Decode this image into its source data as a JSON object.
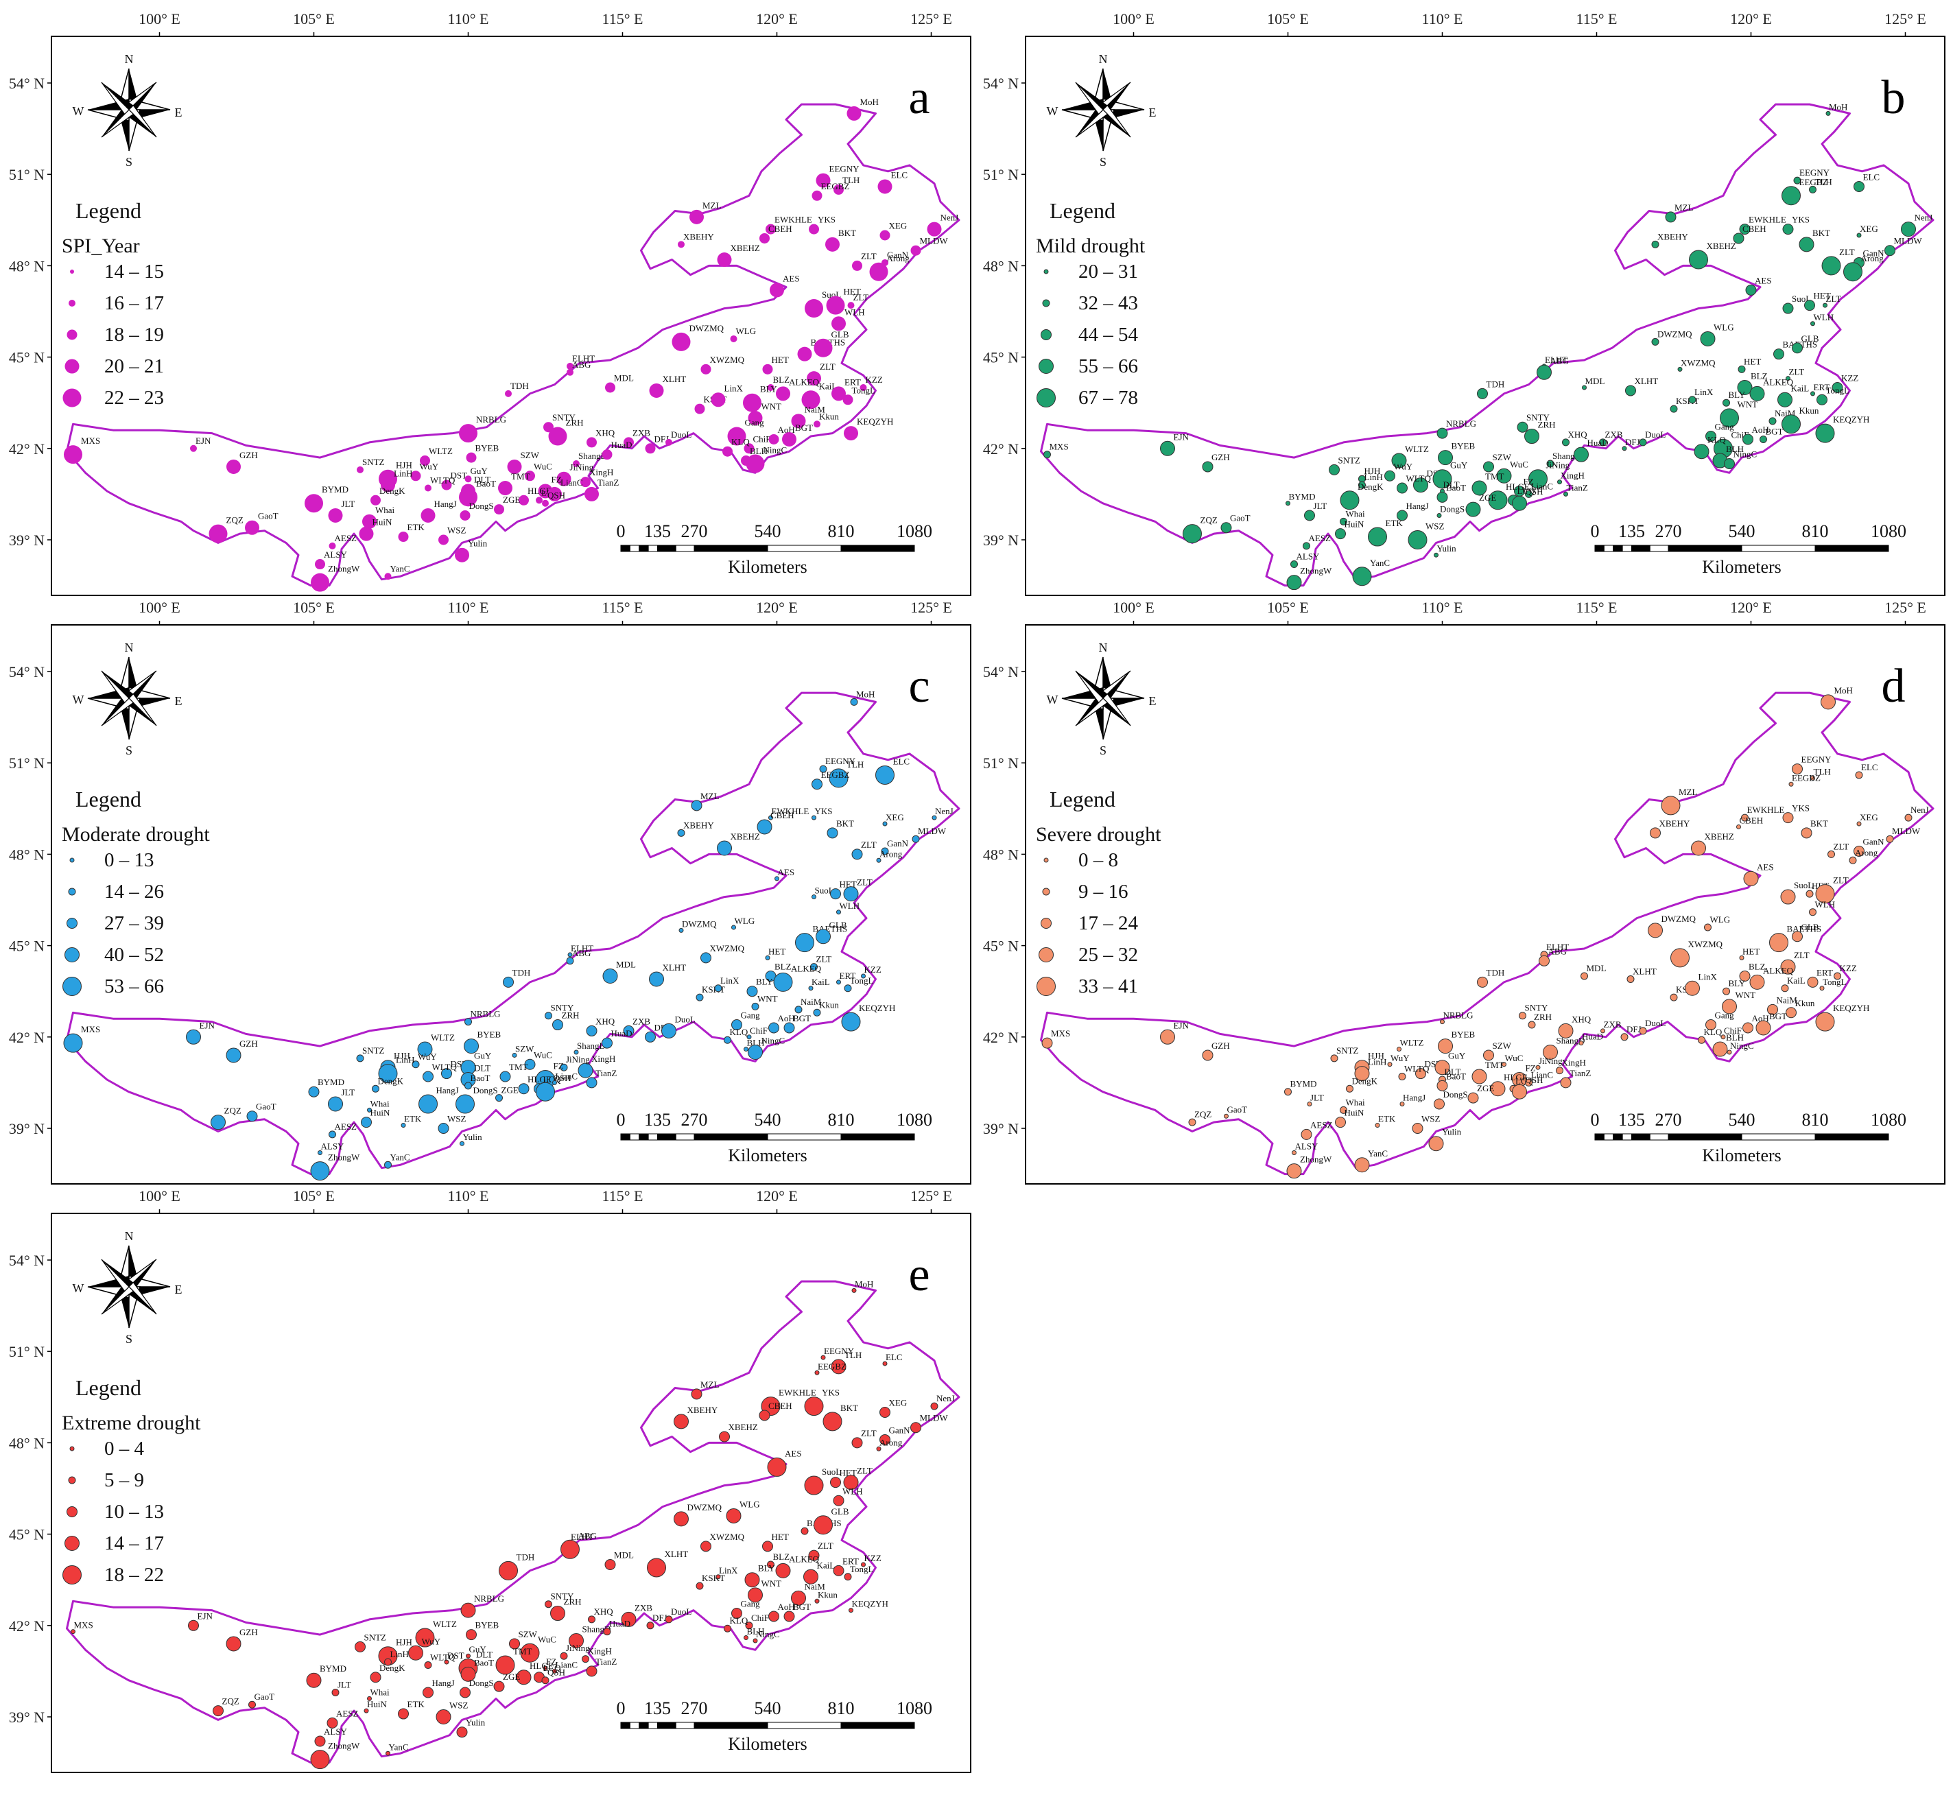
{
  "colors": {
    "border": "#b01ec8",
    "frame": "#000000",
    "panel_a": "#d21ec3",
    "panel_b": "#1fa06e",
    "panel_c": "#2aa0e0",
    "panel_d": "#f2906a",
    "panel_e": "#ee3b3b"
  },
  "compass": {
    "north": "N",
    "south": "S",
    "east": "E",
    "west": "W"
  },
  "longitude_ticks": [
    "100° E",
    "105° E",
    "110° E",
    "115° E",
    "120° E",
    "125° E"
  ],
  "latitude_ticks": [
    "54° N",
    "51° N",
    "48° N",
    "45° N",
    "42° N",
    "39° N"
  ],
  "scale_bar": {
    "ticks": [
      "0",
      "135",
      "270",
      "540",
      "810",
      "1080"
    ],
    "unit": "Kilometers"
  },
  "panels": [
    {
      "letter": "a",
      "legend_title": "Legend",
      "legend_subtitle": "SPI_Year",
      "classes": [
        "14 – 15",
        "16 – 17",
        "18 – 19",
        "20 – 21",
        "22 – 23"
      ]
    },
    {
      "letter": "b",
      "legend_title": "Legend",
      "legend_subtitle": "Mild drought",
      "classes": [
        "20 – 31",
        "32 – 43",
        "44 – 54",
        "55 – 66",
        "67 – 78"
      ]
    },
    {
      "letter": "c",
      "legend_title": "Legend",
      "legend_subtitle": "Moderate drought",
      "classes": [
        "0 – 13",
        "14 – 26",
        "27 – 39",
        "40 – 52",
        "53 – 66"
      ]
    },
    {
      "letter": "d",
      "legend_title": "Legend",
      "legend_subtitle": "Severe drought",
      "classes": [
        "0 – 8",
        "9 – 16",
        "17 – 24",
        "25 – 32",
        "33 – 41"
      ]
    },
    {
      "letter": "e",
      "legend_title": "Legend",
      "legend_subtitle": "Extreme drought",
      "classes": [
        "0 – 4",
        "5 – 9",
        "10 – 13",
        "14 – 17",
        "18 – 22"
      ]
    }
  ],
  "stations": [
    {
      "name": "MoH",
      "lon": 122.5,
      "lat": 53.0
    },
    {
      "name": "EEGNY",
      "lon": 121.5,
      "lat": 50.8
    },
    {
      "name": "TLH",
      "lon": 122.0,
      "lat": 50.5
    },
    {
      "name": "EEGBZ",
      "lon": 121.3,
      "lat": 50.3
    },
    {
      "name": "ELC",
      "lon": 123.5,
      "lat": 50.6
    },
    {
      "name": "MZL",
      "lon": 117.4,
      "lat": 49.6
    },
    {
      "name": "EWKHLE",
      "lon": 119.8,
      "lat": 49.2
    },
    {
      "name": "CBEH",
      "lon": 119.6,
      "lat": 48.9
    },
    {
      "name": "YKS",
      "lon": 121.2,
      "lat": 49.2
    },
    {
      "name": "XBEHY",
      "lon": 116.9,
      "lat": 48.7
    },
    {
      "name": "XBEHZ",
      "lon": 118.3,
      "lat": 48.2
    },
    {
      "name": "BKT",
      "lon": 121.8,
      "lat": 48.7
    },
    {
      "name": "XEG",
      "lon": 123.5,
      "lat": 49.0
    },
    {
      "name": "NenJ",
      "lon": 125.1,
      "lat": 49.2
    },
    {
      "name": "MLDW",
      "lon": 124.5,
      "lat": 48.5
    },
    {
      "name": "ZLT",
      "lon": 122.6,
      "lat": 48.0
    },
    {
      "name": "GanN",
      "lon": 123.5,
      "lat": 48.1
    },
    {
      "name": "Arong",
      "lon": 123.3,
      "lat": 47.8
    },
    {
      "name": "AES",
      "lon": 120.0,
      "lat": 47.2
    },
    {
      "name": "SuoL",
      "lon": 121.2,
      "lat": 46.6
    },
    {
      "name": "HET",
      "lon": 121.9,
      "lat": 46.7
    },
    {
      "name": "ZLT",
      "lon": 122.4,
      "lat": 46.7
    },
    {
      "name": "WLH",
      "lon": 122.0,
      "lat": 46.1
    },
    {
      "name": "DWZMQ",
      "lon": 116.9,
      "lat": 45.5
    },
    {
      "name": "WLG",
      "lon": 118.6,
      "lat": 45.6
    },
    {
      "name": "BAETHS",
      "lon": 120.9,
      "lat": 45.1
    },
    {
      "name": "ELHT",
      "lon": 113.3,
      "lat": 44.7
    },
    {
      "name": "GLB",
      "lon": 121.5,
      "lat": 45.3
    },
    {
      "name": "ABG",
      "lon": 113.3,
      "lat": 44.5
    },
    {
      "name": "MDL",
      "lon": 114.6,
      "lat": 44.0
    },
    {
      "name": "XLHT",
      "lon": 116.1,
      "lat": 43.9
    },
    {
      "name": "XWZMQ",
      "lon": 117.7,
      "lat": 44.6
    },
    {
      "name": "HET",
      "lon": 119.7,
      "lat": 44.6
    },
    {
      "name": "ZLT",
      "lon": 121.2,
      "lat": 44.3
    },
    {
      "name": "BLZ",
      "lon": 119.8,
      "lat": 44.0
    },
    {
      "name": "ALKEQ",
      "lon": 120.2,
      "lat": 43.8
    },
    {
      "name": "KaiL",
      "lon": 121.1,
      "lat": 43.6
    },
    {
      "name": "TDH",
      "lon": 111.3,
      "lat": 43.8
    },
    {
      "name": "KSKT",
      "lon": 117.5,
      "lat": 43.3
    },
    {
      "name": "LinX",
      "lon": 118.1,
      "lat": 43.6
    },
    {
      "name": "BLY",
      "lon": 119.2,
      "lat": 43.5
    },
    {
      "name": "ERT",
      "lon": 122.0,
      "lat": 43.8
    },
    {
      "name": "KZZ",
      "lon": 122.8,
      "lat": 44.0
    },
    {
      "name": "TongL",
      "lon": 122.3,
      "lat": 43.6
    },
    {
      "name": "WNT",
      "lon": 119.3,
      "lat": 43.0
    },
    {
      "name": "NaiM",
      "lon": 120.7,
      "lat": 42.9
    },
    {
      "name": "Kkun",
      "lon": 121.3,
      "lat": 42.8
    },
    {
      "name": "SNTY",
      "lon": 112.6,
      "lat": 42.7
    },
    {
      "name": "ZRH",
      "lon": 112.9,
      "lat": 42.4
    },
    {
      "name": "NRBLG",
      "lon": 110.0,
      "lat": 42.5
    },
    {
      "name": "XHQ",
      "lon": 114.0,
      "lat": 42.2
    },
    {
      "name": "ZXB",
      "lon": 115.2,
      "lat": 42.2
    },
    {
      "name": "DFJ",
      "lon": 115.9,
      "lat": 42.0
    },
    {
      "name": "DuoL",
      "lon": 116.5,
      "lat": 42.2
    },
    {
      "name": "Gang",
      "lon": 118.7,
      "lat": 42.4
    },
    {
      "name": "ChiF",
      "lon": 119.1,
      "lat": 42.0
    },
    {
      "name": "AoH",
      "lon": 119.9,
      "lat": 42.3
    },
    {
      "name": "BGT",
      "lon": 120.4,
      "lat": 42.3
    },
    {
      "name": "KEQZYH",
      "lon": 122.4,
      "lat": 42.5
    },
    {
      "name": "KLQ",
      "lon": 118.4,
      "lat": 41.9
    },
    {
      "name": "BLH",
      "lon": 119.0,
      "lat": 41.6
    },
    {
      "name": "NingC",
      "lon": 119.3,
      "lat": 41.5
    },
    {
      "name": "MXS",
      "lon": 97.2,
      "lat": 41.8
    },
    {
      "name": "EJN",
      "lon": 101.1,
      "lat": 42.0
    },
    {
      "name": "GZH",
      "lon": 102.4,
      "lat": 41.4
    },
    {
      "name": "SNTZ",
      "lon": 106.5,
      "lat": 41.3
    },
    {
      "name": "HJH",
      "lon": 107.4,
      "lat": 41.0
    },
    {
      "name": "WLTZ",
      "lon": 108.6,
      "lat": 41.6
    },
    {
      "name": "BYEB",
      "lon": 110.1,
      "lat": 41.7
    },
    {
      "name": "SZW",
      "lon": 111.5,
      "lat": 41.4
    },
    {
      "name": "WuY",
      "lon": 108.3,
      "lat": 41.1
    },
    {
      "name": "DST",
      "lon": 109.3,
      "lat": 40.8
    },
    {
      "name": "GuY",
      "lon": 110.0,
      "lat": 41.0
    },
    {
      "name": "LinH",
      "lon": 107.4,
      "lat": 40.8
    },
    {
      "name": "DengK",
      "lon": 107.0,
      "lat": 40.3
    },
    {
      "name": "WLTQ",
      "lon": 108.7,
      "lat": 40.7
    },
    {
      "name": "DLT",
      "lon": 110.0,
      "lat": 40.6
    },
    {
      "name": "BaoT",
      "lon": 110.0,
      "lat": 40.4
    },
    {
      "name": "WuC",
      "lon": 112.0,
      "lat": 41.1
    },
    {
      "name": "ShangD",
      "lon": 113.5,
      "lat": 41.5
    },
    {
      "name": "HuaD",
      "lon": 114.5,
      "lat": 41.8
    },
    {
      "name": "XingH",
      "lon": 113.8,
      "lat": 40.9
    },
    {
      "name": "TianZ",
      "lon": 114.0,
      "lat": 40.5
    },
    {
      "name": "JiNing",
      "lon": 113.1,
      "lat": 41.0
    },
    {
      "name": "TMT",
      "lon": 111.2,
      "lat": 40.7
    },
    {
      "name": "FZ",
      "lon": 112.5,
      "lat": 40.6
    },
    {
      "name": "LCQ",
      "lon": 112.3,
      "lat": 40.3
    },
    {
      "name": "HLGE",
      "lon": 111.8,
      "lat": 40.3
    },
    {
      "name": "LianC",
      "lon": 112.8,
      "lat": 40.5
    },
    {
      "name": "QSH",
      "lon": 112.5,
      "lat": 40.2
    },
    {
      "name": "ZGE",
      "lon": 111.0,
      "lat": 40.0
    },
    {
      "name": "BYMD",
      "lon": 105.0,
      "lat": 40.2
    },
    {
      "name": "JLT",
      "lon": 105.7,
      "lat": 39.8
    },
    {
      "name": "Whai",
      "lon": 106.8,
      "lat": 39.6
    },
    {
      "name": "HangJ",
      "lon": 108.7,
      "lat": 39.8
    },
    {
      "name": "DongS",
      "lon": 109.9,
      "lat": 39.8
    },
    {
      "name": "HuiN",
      "lon": 106.7,
      "lat": 39.2
    },
    {
      "name": "ETK",
      "lon": 107.9,
      "lat": 39.1
    },
    {
      "name": "WSZ",
      "lon": 109.2,
      "lat": 39.0
    },
    {
      "name": "Yulin",
      "lon": 109.8,
      "lat": 38.5
    },
    {
      "name": "AESZ",
      "lon": 105.6,
      "lat": 38.8
    },
    {
      "name": "ALSY",
      "lon": 105.2,
      "lat": 38.2
    },
    {
      "name": "ZhongW",
      "lon": 105.2,
      "lat": 37.6
    },
    {
      "name": "YanC",
      "lon": 107.4,
      "lat": 37.8
    },
    {
      "name": "ZQZ",
      "lon": 101.9,
      "lat": 39.2
    },
    {
      "name": "GaoT",
      "lon": 103.0,
      "lat": 39.4
    }
  ]
}
